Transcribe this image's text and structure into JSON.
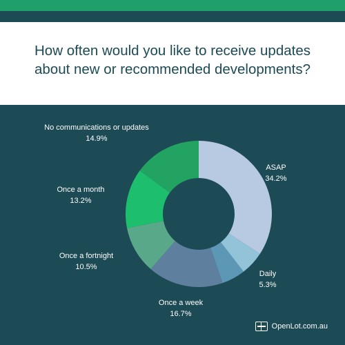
{
  "colors": {
    "background": "#1c4a55",
    "top_stripe": "#1fa06a",
    "title_panel": "#ffffff",
    "title_text": "#1c4a55",
    "label_text": "#ffffff"
  },
  "chart_data": {
    "type": "pie",
    "donut": true,
    "title": "How often would you like to receive updates about new or recommended developments?",
    "categories": [
      "ASAP",
      "Daily",
      "",
      "Once a week",
      "Once a fortnight",
      "Once a month",
      "No communications or updates"
    ],
    "values": [
      34.2,
      5.3,
      5.2,
      16.7,
      10.5,
      13.2,
      14.9
    ],
    "value_labels": [
      "34.2%",
      "5.3%",
      "",
      "16.7%",
      "10.5%",
      "13.2%",
      "14.9%"
    ],
    "colors": [
      "#b8c9e2",
      "#92c3d9",
      "#5d97b6",
      "#5f7f9f",
      "#58a889",
      "#1dbe6e",
      "#23a362"
    ]
  },
  "brand": {
    "text": "OpenLot.com.au",
    "icon": "openlot-logo-icon"
  }
}
